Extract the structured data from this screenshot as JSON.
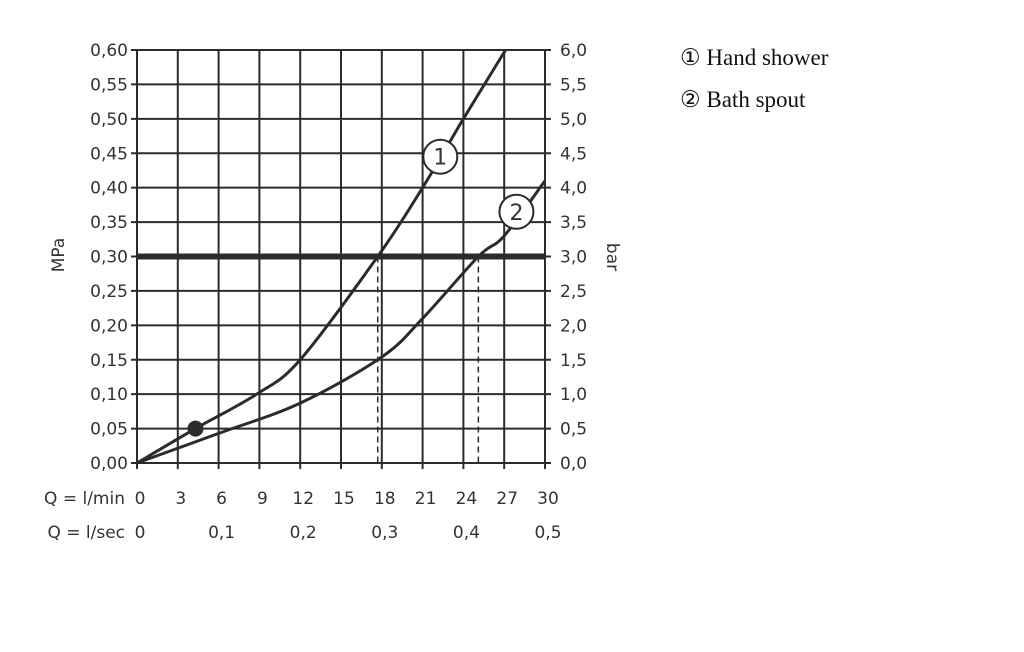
{
  "chart_data": {
    "type": "line",
    "title": "",
    "x_axis": {
      "label": "Q = l/min",
      "range": [
        0,
        30
      ],
      "ticks": [
        "0",
        "3",
        "6",
        "9",
        "12",
        "15",
        "18",
        "21",
        "24",
        "27",
        "30"
      ]
    },
    "x_axis_secondary": {
      "label": "Q = l/sec",
      "ticks": [
        {
          "at_lmin": 0,
          "label": "0"
        },
        {
          "at_lmin": 6,
          "label": "0,1"
        },
        {
          "at_lmin": 12,
          "label": "0,2"
        },
        {
          "at_lmin": 18,
          "label": "0,3"
        },
        {
          "at_lmin": 24,
          "label": "0,4"
        },
        {
          "at_lmin": 30,
          "label": "0,5"
        }
      ]
    },
    "y_axis_left": {
      "label": "MPa",
      "range": [
        0,
        0.6
      ],
      "ticks": [
        "0,00",
        "0,05",
        "0,10",
        "0,15",
        "0,20",
        "0,25",
        "0,30",
        "0,35",
        "0,40",
        "0,45",
        "0,50",
        "0,55",
        "0,60"
      ]
    },
    "y_axis_right": {
      "label": "bar",
      "range": [
        0,
        6
      ],
      "ticks": [
        "0,0",
        "0,5",
        "1,0",
        "1,5",
        "2,0",
        "2,5",
        "3,0",
        "3,5",
        "4,0",
        "4,5",
        "5,0",
        "5,5",
        "6,0"
      ]
    },
    "grid": true,
    "reference_line": {
      "y": 0.3,
      "style": "thick"
    },
    "series": [
      {
        "name": "Hand shower",
        "marker_label": "1",
        "marker_at": [
          22.3,
          0.445
        ],
        "x": [
          0,
          4.3,
          8.8,
          12,
          17.7,
          21,
          24,
          27.1
        ],
        "y": [
          0,
          0.05,
          0.1,
          0.15,
          0.3,
          0.4,
          0.5,
          0.6
        ],
        "drop_line_x": 17.7
      },
      {
        "name": "Bath spout",
        "marker_label": "2",
        "marker_at": [
          27.9,
          0.365
        ],
        "x": [
          0,
          6,
          12,
          18,
          21,
          25.1,
          27,
          30
        ],
        "y": [
          0,
          0.043,
          0.087,
          0.154,
          0.21,
          0.3,
          0.33,
          0.41
        ],
        "drop_line_x": 25.1
      }
    ],
    "point": {
      "x": 4.3,
      "y": 0.05
    },
    "legend": {
      "placement": "top-right",
      "entries": [
        {
          "symbol": "①",
          "text": "Hand shower"
        },
        {
          "symbol": "②",
          "text": "Bath spout"
        }
      ]
    },
    "colors": {
      "lines": "#2b2b2b",
      "text": "#333333",
      "background": "#ffffff"
    }
  }
}
